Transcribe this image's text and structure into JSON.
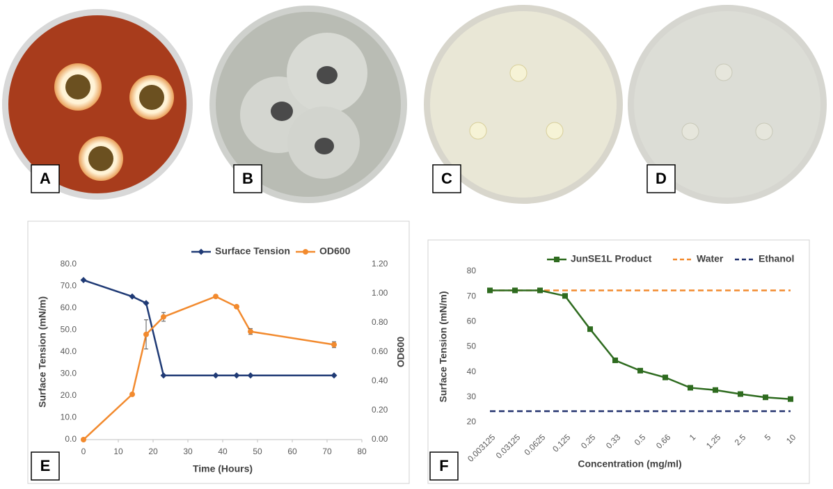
{
  "photo_labels": [
    "A",
    "B",
    "C",
    "D"
  ],
  "chart_data": [
    {
      "type": "line",
      "panel": "E",
      "x_label": "Time (Hours)",
      "y_label": "Surface Tension (mN/m)",
      "y2_label": "OD600",
      "x": [
        0,
        14,
        18,
        23,
        38,
        44,
        48,
        72
      ],
      "xlim": [
        0,
        80
      ],
      "xticks": [
        0,
        10,
        20,
        30,
        40,
        50,
        60,
        70,
        80
      ],
      "ylim": [
        0,
        80
      ],
      "yticks": [
        {
          "value": 0,
          "label": "0.0"
        },
        {
          "value": 10,
          "label": "10.0"
        },
        {
          "value": 20,
          "label": "20.0"
        },
        {
          "value": 30,
          "label": "30.0"
        },
        {
          "value": 40,
          "label": "40.0"
        },
        {
          "value": 50,
          "label": "50.0"
        },
        {
          "value": 60,
          "label": "60.0"
        },
        {
          "value": 70,
          "label": "70.0"
        },
        {
          "value": 80,
          "label": "80.0"
        }
      ],
      "y2lim": [
        0,
        1.2
      ],
      "y2ticks": [
        {
          "value": 0,
          "label": "0.00"
        },
        {
          "value": 0.2,
          "label": "0.20"
        },
        {
          "value": 0.4,
          "label": "0.40"
        },
        {
          "value": 0.6,
          "label": "0.60"
        },
        {
          "value": 0.8,
          "label": "0.80"
        },
        {
          "value": 1,
          "label": "1.00"
        },
        {
          "value": 1.2,
          "label": "1.20"
        }
      ],
      "series": [
        {
          "name": "Surface Tension",
          "color": "#1f3a75",
          "marker": "diamond",
          "values": [
            72.8,
            65.3,
            62.3,
            29.3,
            29.3,
            29.3,
            29.3,
            29.3
          ]
        },
        {
          "name": "OD600",
          "color": "#f28a2e",
          "marker": "circle",
          "axis": "y2",
          "values": [
            0.0,
            0.31,
            0.72,
            0.84,
            0.98,
            0.91,
            0.74,
            0.65
          ],
          "errors": [
            null,
            null,
            0.1,
            0.03,
            null,
            null,
            0.02,
            0.02
          ]
        }
      ]
    },
    {
      "type": "line",
      "panel": "F",
      "x_label": "Concentration (mg/ml)",
      "y_label": "Surface Tension (mN/m)",
      "categories": [
        "0.003125",
        "0.03125",
        "0.0625",
        "0.125",
        "0.25",
        "0.33",
        "0.5",
        "0.66",
        "1",
        "1.25",
        "2.5",
        "5",
        "10"
      ],
      "ylim": [
        20,
        80
      ],
      "yticks": [
        20,
        30,
        40,
        50,
        60,
        70,
        80
      ],
      "series": [
        {
          "name": "JunSE1L Product",
          "color": "#2e6b1f",
          "marker": "square",
          "values": [
            72.4,
            72.4,
            72.4,
            70.2,
            57,
            44.6,
            40.5,
            37.8,
            33.7,
            32.8,
            31.2,
            29.9,
            29.2
          ]
        },
        {
          "name": "Water",
          "color": "#f28a2e",
          "dashed": true,
          "values": [
            72.4,
            72.4,
            72.4,
            72.4,
            72.4,
            72.4,
            72.4,
            72.4,
            72.4,
            72.4,
            72.4,
            72.4,
            72.4
          ]
        },
        {
          "name": "Ethanol",
          "color": "#1f2f6b",
          "dashed": true,
          "values": [
            24.4,
            24.4,
            24.4,
            24.4,
            24.4,
            24.4,
            24.4,
            24.4,
            24.4,
            24.4,
            24.4,
            24.4,
            24.4
          ]
        }
      ]
    }
  ]
}
